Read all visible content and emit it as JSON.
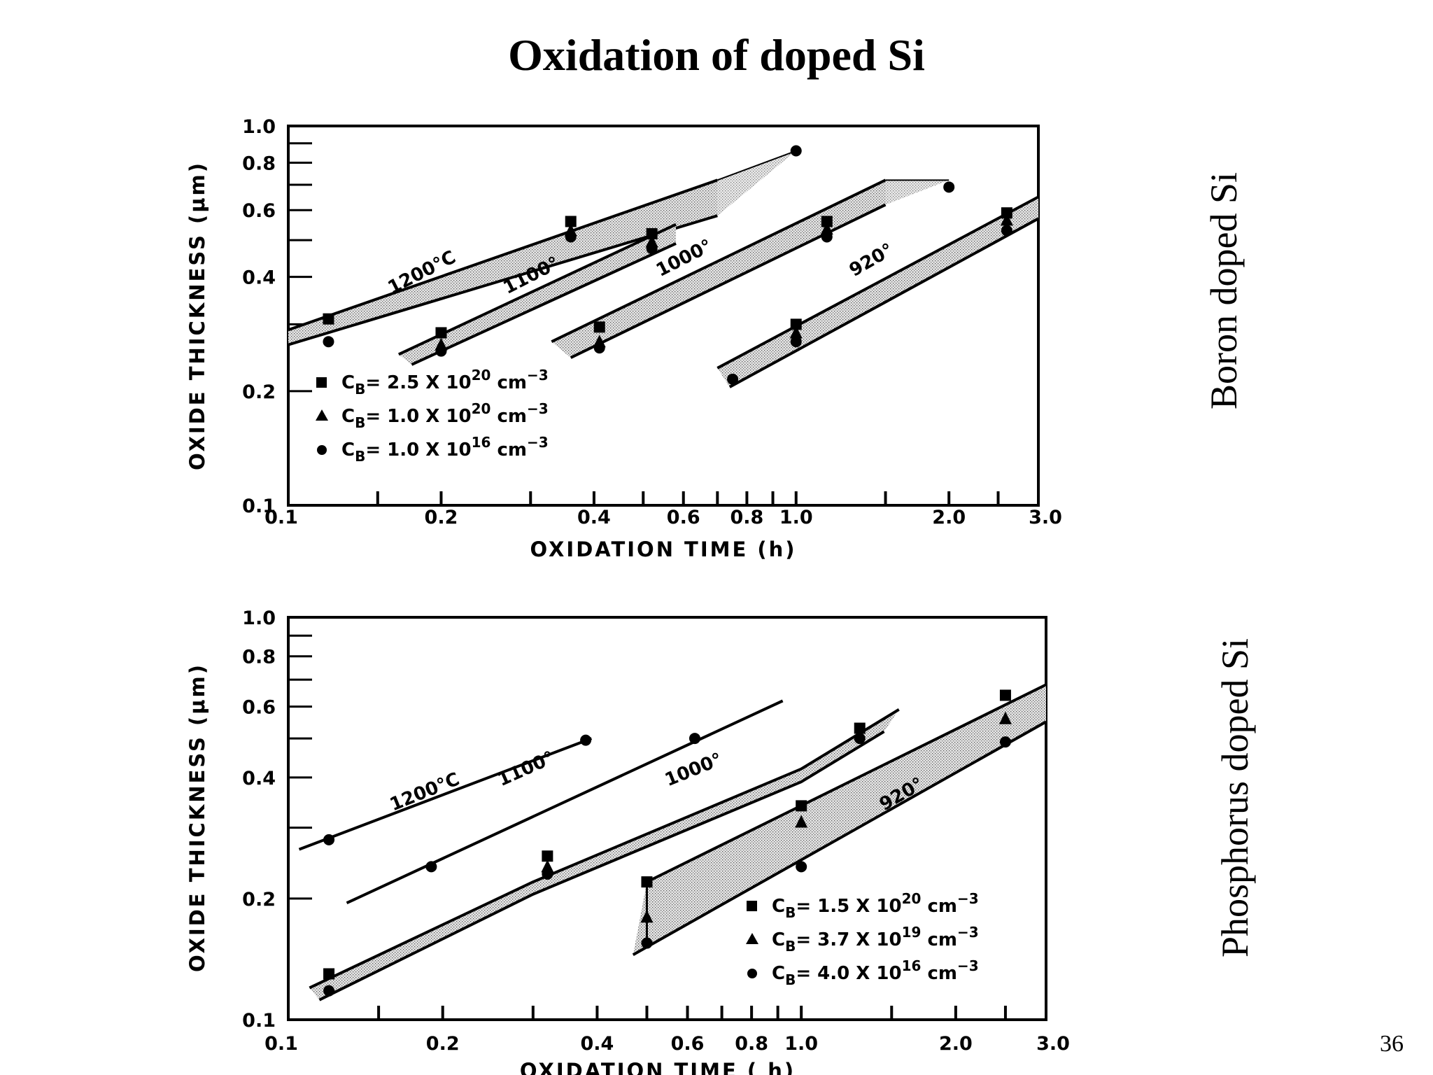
{
  "slide": {
    "title": "Oxidation of doped Si",
    "page_number": "36"
  },
  "chart_data": [
    {
      "type": "line",
      "side_label": "Boron doped Si",
      "xlabel": "OXIDATION TIME (h)",
      "ylabel": "OXIDE THICKNESS (μm)",
      "x_scale": "log",
      "y_scale": "log",
      "xlim": [
        0.1,
        3.0
      ],
      "ylim": [
        0.1,
        1.0
      ],
      "x_tick_labels": [
        "0.1",
        "0.2",
        "0.4",
        "0.6",
        "0.8",
        "1.0",
        "2.0",
        "3.0"
      ],
      "y_tick_labels": [
        "0.1",
        "0.2",
        "0.4",
        "0.6",
        "0.8",
        "1.0"
      ],
      "legend_position": "lower-left",
      "legend": [
        {
          "marker": "square",
          "text": "C",
          "sub": "B",
          "mid": "= 2.5 X 10",
          "exp": "20",
          "unit": " cm",
          "unit_exp": "−3"
        },
        {
          "marker": "triangle",
          "text": "C",
          "sub": "B",
          "mid": "= 1.0 X 10",
          "exp": "20",
          "unit": " cm",
          "unit_exp": "−3"
        },
        {
          "marker": "circle",
          "text": "C",
          "sub": "B",
          "mid": "= 1.0 X 10",
          "exp": "16",
          "unit": " cm",
          "unit_exp": "−3"
        }
      ],
      "series": [
        {
          "temp": "1200°C",
          "upper": {
            "x": [
              0.1,
              0.7
            ],
            "y": [
              0.29,
              0.72
            ]
          },
          "lower": {
            "x": [
              0.1,
              0.7
            ],
            "y": [
              0.265,
              0.58
            ]
          },
          "ext": {
            "x": [
              0.7,
              1.0
            ],
            "y": [
              0.72,
              0.86
            ]
          },
          "points": [
            {
              "m": "square",
              "x": 0.12,
              "y": 0.31
            },
            {
              "m": "circle",
              "x": 0.12,
              "y": 0.27
            },
            {
              "m": "square",
              "x": 0.36,
              "y": 0.56
            },
            {
              "m": "triangle",
              "x": 0.36,
              "y": 0.53
            },
            {
              "m": "circle",
              "x": 0.36,
              "y": 0.51
            },
            {
              "m": "circle",
              "x": 1.0,
              "y": 0.86
            }
          ]
        },
        {
          "temp": "1100°",
          "upper": {
            "x": [
              0.165,
              0.58
            ],
            "y": [
              0.25,
              0.55
            ]
          },
          "lower": {
            "x": [
              0.175,
              0.58
            ],
            "y": [
              0.235,
              0.49
            ]
          },
          "ext": null,
          "points": [
            {
              "m": "square",
              "x": 0.2,
              "y": 0.285
            },
            {
              "m": "triangle",
              "x": 0.2,
              "y": 0.265
            },
            {
              "m": "circle",
              "x": 0.2,
              "y": 0.255
            },
            {
              "m": "square",
              "x": 0.52,
              "y": 0.52
            },
            {
              "m": "triangle",
              "x": 0.52,
              "y": 0.495
            },
            {
              "m": "circle",
              "x": 0.52,
              "y": 0.475
            }
          ]
        },
        {
          "temp": "1000°",
          "upper": {
            "x": [
              0.33,
              1.5
            ],
            "y": [
              0.27,
              0.72
            ]
          },
          "lower": {
            "x": [
              0.36,
              1.5
            ],
            "y": [
              0.245,
              0.62
            ]
          },
          "ext": {
            "x": [
              1.5,
              2.0
            ],
            "y": [
              0.72,
              0.72
            ]
          },
          "points": [
            {
              "m": "square",
              "x": 0.41,
              "y": 0.295
            },
            {
              "m": "triangle",
              "x": 0.41,
              "y": 0.27
            },
            {
              "m": "circle",
              "x": 0.41,
              "y": 0.26
            },
            {
              "m": "square",
              "x": 1.15,
              "y": 0.56
            },
            {
              "m": "triangle",
              "x": 1.15,
              "y": 0.535
            },
            {
              "m": "circle",
              "x": 1.15,
              "y": 0.51
            },
            {
              "m": "circle",
              "x": 2.0,
              "y": 0.69
            }
          ]
        },
        {
          "temp": "920°",
          "upper": {
            "x": [
              0.7,
              3.0
            ],
            "y": [
              0.23,
              0.65
            ]
          },
          "lower": {
            "x": [
              0.74,
              3.0
            ],
            "y": [
              0.205,
              0.57
            ]
          },
          "ext": null,
          "points": [
            {
              "m": "circle",
              "x": 0.75,
              "y": 0.215
            },
            {
              "m": "square",
              "x": 1.0,
              "y": 0.3
            },
            {
              "m": "triangle",
              "x": 1.0,
              "y": 0.285
            },
            {
              "m": "circle",
              "x": 1.0,
              "y": 0.27
            },
            {
              "m": "square",
              "x": 2.6,
              "y": 0.59
            },
            {
              "m": "triangle",
              "x": 2.6,
              "y": 0.565
            },
            {
              "m": "circle",
              "x": 2.6,
              "y": 0.53
            }
          ]
        }
      ],
      "temp_labels": [
        "1200°C",
        "1100°",
        "1000°",
        "920°"
      ]
    },
    {
      "type": "line",
      "side_label": "Phosphorus doped Si",
      "xlabel": "OXIDATION TIME ( h)",
      "ylabel": "OXIDE THICKNESS (μm)",
      "x_scale": "log",
      "y_scale": "log",
      "xlim": [
        0.1,
        3.0
      ],
      "ylim": [
        0.1,
        1.0
      ],
      "x_tick_labels": [
        "0.1",
        "0.2",
        "0.4",
        "0.6",
        "0.8",
        "1.0",
        "2.0",
        "3.0"
      ],
      "y_tick_labels": [
        "0.1",
        "0.2",
        "0.4",
        "0.6",
        "0.8",
        "1.0"
      ],
      "legend_position": "lower-right",
      "legend": [
        {
          "marker": "square",
          "text": "C",
          "sub": "B",
          "mid": "= 1.5 X 10",
          "exp": "20",
          "unit": " cm",
          "unit_exp": "−3"
        },
        {
          "marker": "triangle",
          "text": "C",
          "sub": "B",
          "mid": "= 3.7 X 10",
          "exp": "19",
          "unit": " cm",
          "unit_exp": "−3"
        },
        {
          "marker": "circle",
          "text": "C",
          "sub": "B",
          "mid": "= 4.0 X 10",
          "exp": "16",
          "unit": " cm",
          "unit_exp": "−3"
        }
      ],
      "series": [
        {
          "temp": "1200°C",
          "single": {
            "x": [
              0.105,
              0.39
            ],
            "y": [
              0.265,
              0.5
            ]
          },
          "points": [
            {
              "m": "circle",
              "x": 0.12,
              "y": 0.28
            },
            {
              "m": "circle",
              "x": 0.38,
              "y": 0.495
            }
          ]
        },
        {
          "temp": "1100°",
          "single": {
            "x": [
              0.13,
              0.92
            ],
            "y": [
              0.195,
              0.62
            ]
          },
          "points": [
            {
              "m": "circle",
              "x": 0.19,
              "y": 0.24
            },
            {
              "m": "circle",
              "x": 0.62,
              "y": 0.5
            }
          ]
        },
        {
          "temp": "1000°",
          "upper": {
            "x": [
              0.11,
              0.3,
              1.0,
              1.55
            ],
            "y": [
              0.12,
              0.22,
              0.42,
              0.59
            ]
          },
          "lower": {
            "x": [
              0.115,
              0.3,
              1.0,
              1.45
            ],
            "y": [
              0.112,
              0.205,
              0.39,
              0.52
            ]
          },
          "points": [
            {
              "m": "square",
              "x": 0.12,
              "y": 0.13
            },
            {
              "m": "circle",
              "x": 0.12,
              "y": 0.118
            },
            {
              "m": "square",
              "x": 0.32,
              "y": 0.255
            },
            {
              "m": "triangle",
              "x": 0.32,
              "y": 0.24
            },
            {
              "m": "circle",
              "x": 0.32,
              "y": 0.23
            },
            {
              "m": "square",
              "x": 1.3,
              "y": 0.53
            },
            {
              "m": "circle",
              "x": 1.3,
              "y": 0.5
            }
          ]
        },
        {
          "temp": "920°",
          "upper": {
            "x": [
              0.5,
              3.0
            ],
            "y": [
              0.22,
              0.68
            ]
          },
          "lower": {
            "x": [
              0.47,
              3.0
            ],
            "y": [
              0.145,
              0.55
            ]
          },
          "left_edge": {
            "x": [
              0.5,
              0.5
            ],
            "y": [
              0.22,
              0.155
            ]
          },
          "points": [
            {
              "m": "square",
              "x": 0.5,
              "y": 0.22
            },
            {
              "m": "triangle",
              "x": 0.5,
              "y": 0.18
            },
            {
              "m": "circle",
              "x": 0.5,
              "y": 0.155
            },
            {
              "m": "square",
              "x": 1.0,
              "y": 0.34
            },
            {
              "m": "triangle",
              "x": 1.0,
              "y": 0.31
            },
            {
              "m": "circle",
              "x": 1.0,
              "y": 0.24
            },
            {
              "m": "square",
              "x": 2.5,
              "y": 0.64
            },
            {
              "m": "triangle",
              "x": 2.5,
              "y": 0.56
            },
            {
              "m": "circle",
              "x": 2.5,
              "y": 0.49
            }
          ]
        }
      ],
      "temp_labels": [
        "1200°C",
        "1100°",
        "1000°",
        "920°"
      ]
    }
  ]
}
